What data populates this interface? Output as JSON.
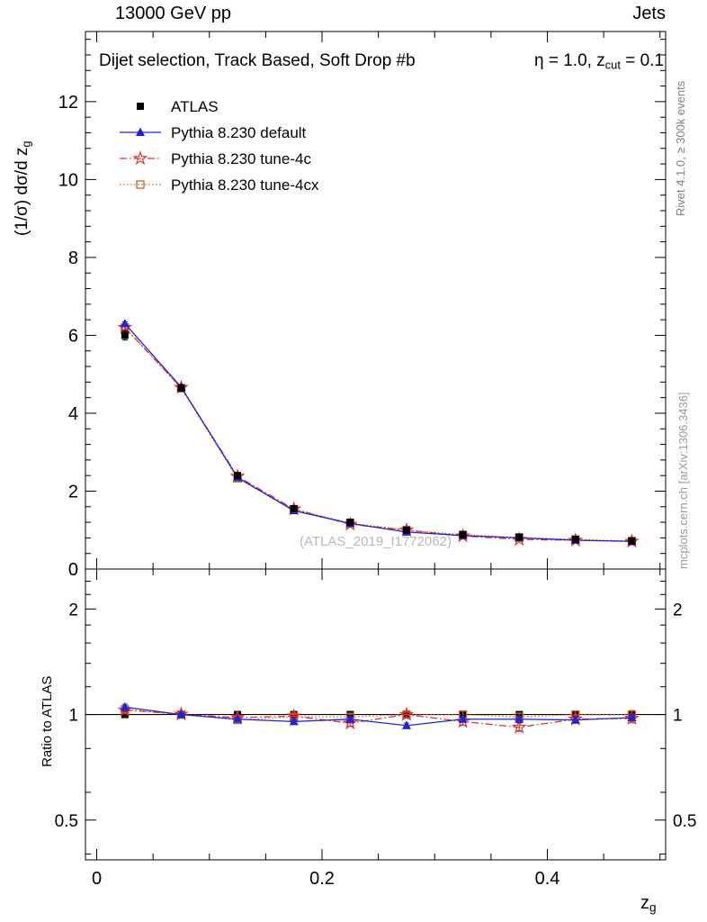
{
  "header": {
    "left": "13000 GeV pp",
    "right": "Jets"
  },
  "panel_title": {
    "left": "Dijet selection, Track Based, Soft Drop #b",
    "right_main": "η = 1.0, z",
    "right_sub": "cut",
    "right_tail": " = 0.1"
  },
  "labels": {
    "ylabel_main": "(1/σ) dσ/d z",
    "ylabel_sub": "g",
    "ratio_ylabel": "Ratio to ATLAS",
    "xlabel_main": "z",
    "xlabel_sub": "g"
  },
  "right_texts": {
    "rivet": "Rivet 4.1.0, ≥ 300k events",
    "mcplots": "mcplots.cern.ch [arXiv:1306.3436]"
  },
  "watermark": "(ATLAS_2019_I1772062)",
  "chart_data": {
    "type": "line",
    "title": "Dijet selection, Track Based, Soft Drop #b η = 1.0, z_cut = 0.1",
    "xlabel": "z_g",
    "ylabel": "(1/σ) dσ/d z_g",
    "ratio_label": "Ratio to ATLAS",
    "x": [
      0.025,
      0.075,
      0.125,
      0.175,
      0.225,
      0.275,
      0.325,
      0.375,
      0.425,
      0.475
    ],
    "axes": {
      "x": {
        "min": -0.01,
        "max": 0.505,
        "major": [
          0,
          0.2,
          0.4
        ],
        "labels": [
          "0",
          "0.2",
          "0.4"
        ],
        "minor_step": 0.05
      },
      "y_main": {
        "min": 0,
        "max": 13.8,
        "major": [
          0,
          2,
          4,
          6,
          8,
          10,
          12
        ],
        "minor_step": 0.4
      },
      "y_ratio": {
        "scale": "log",
        "min": 0.385,
        "max": 2.6,
        "major": [
          0.5,
          1,
          2
        ],
        "labels": [
          "0.5",
          "1",
          "2"
        ],
        "minor": [
          0.4,
          0.6,
          0.8,
          1.2,
          1.4,
          1.6,
          1.8,
          2.2,
          2.4,
          2.6
        ]
      }
    },
    "series": [
      {
        "name": "ATLAS",
        "color": "#000000",
        "marker": "square-filled",
        "line": "none",
        "values": [
          6.0,
          4.65,
          2.4,
          1.55,
          1.2,
          1.0,
          0.88,
          0.82,
          0.76,
          0.72
        ],
        "errors": [
          0.12,
          0.08,
          0.05,
          0.04,
          0.03,
          0.03,
          0.025,
          0.025,
          0.02,
          0.02
        ],
        "ratio": [
          1,
          1,
          1,
          1,
          1,
          1,
          1,
          1,
          1,
          1
        ],
        "ratio_errors": [
          0.02,
          0.015,
          0.015,
          0.015,
          0.015,
          0.015,
          0.015,
          0.015,
          0.015,
          0.015
        ]
      },
      {
        "name": "Pythia 8.230 default",
        "color": "#2222dd",
        "marker": "triangle-filled",
        "line": "solid",
        "values": [
          6.3,
          4.67,
          2.35,
          1.5,
          1.17,
          0.95,
          0.86,
          0.8,
          0.74,
          0.71
        ],
        "errors": [
          0.05,
          0.04,
          0.03,
          0.02,
          0.02,
          0.02,
          0.015,
          0.015,
          0.015,
          0.015
        ],
        "ratio": [
          1.05,
          1.0,
          0.97,
          0.955,
          0.97,
          0.93,
          0.97,
          0.97,
          0.965,
          0.98
        ],
        "ratio_errors": [
          0.02,
          0.01,
          0.012,
          0.012,
          0.015,
          0.015,
          0.018,
          0.02,
          0.02,
          0.02
        ]
      },
      {
        "name": "Pythia 8.230 tune-4c",
        "color": "#e03333",
        "marker": "star-open",
        "line": "dashdot",
        "values": [
          6.2,
          4.66,
          2.38,
          1.54,
          1.15,
          1.0,
          0.85,
          0.76,
          0.74,
          0.71
        ],
        "errors": [
          0.05,
          0.04,
          0.03,
          0.02,
          0.02,
          0.02,
          0.015,
          0.015,
          0.015,
          0.015
        ],
        "ratio": [
          1.03,
          1.002,
          0.98,
          0.99,
          0.945,
          1.0,
          0.955,
          0.92,
          0.97,
          0.975
        ],
        "ratio_errors": [
          0.025,
          0.012,
          0.015,
          0.015,
          0.018,
          0.02,
          0.022,
          0.025,
          0.025,
          0.028
        ]
      },
      {
        "name": "Pythia 8.230 tune-4cx",
        "color": "#cc6622",
        "marker": "square-open",
        "line": "dotted",
        "values": [
          6.2,
          4.64,
          2.33,
          1.53,
          1.18,
          1.0,
          0.88,
          0.81,
          0.76,
          0.72
        ],
        "errors": [
          0.05,
          0.04,
          0.03,
          0.02,
          0.02,
          0.02,
          0.015,
          0.015,
          0.015,
          0.015
        ],
        "ratio": [
          1.035,
          1.0,
          0.965,
          0.985,
          0.985,
          1.0,
          1.0,
          0.985,
          1.0,
          1.0
        ],
        "ratio_errors": [
          0.02,
          0.012,
          0.015,
          0.015,
          0.018,
          0.02,
          0.022,
          0.025,
          0.025,
          0.028
        ]
      }
    ]
  }
}
